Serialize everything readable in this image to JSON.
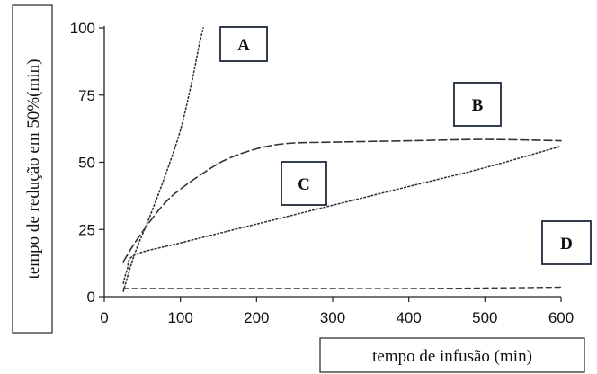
{
  "chart_data": {
    "type": "line",
    "title": "",
    "xlabel": "tempo de infusão (min)",
    "ylabel": "tempo de redução em 50%(min)",
    "xlim": [
      0,
      600
    ],
    "ylim": [
      0,
      100
    ],
    "xticks": [
      "0",
      "100",
      "200",
      "300",
      "400",
      "500",
      "600"
    ],
    "yticks": [
      "0",
      "25",
      "50",
      "75",
      "100"
    ],
    "grid": false,
    "series": [
      {
        "name": "A",
        "style": "dotted",
        "x": [
          25,
          40,
          60,
          80,
          100,
          115,
          125,
          130
        ],
        "y": [
          2,
          16,
          30,
          45,
          62,
          80,
          94,
          100
        ]
      },
      {
        "name": "B",
        "style": "long-dash",
        "x": [
          25,
          40,
          60,
          80,
          100,
          130,
          160,
          200,
          240,
          300,
          400,
          500,
          600
        ],
        "y": [
          13,
          20,
          28,
          35,
          40,
          46,
          51,
          55,
          57,
          57.5,
          58,
          58.5,
          58
        ]
      },
      {
        "name": "C",
        "style": "dotted",
        "x": [
          25,
          30,
          40,
          100,
          200,
          300,
          400,
          500,
          600
        ],
        "y": [
          5,
          10,
          15.5,
          20,
          27,
          34,
          41,
          48,
          56
        ]
      },
      {
        "name": "D",
        "style": "dashed",
        "x": [
          25,
          100,
          200,
          300,
          400,
          500,
          600
        ],
        "y": [
          3,
          3,
          3,
          3,
          3,
          3.2,
          3.5
        ]
      }
    ]
  }
}
